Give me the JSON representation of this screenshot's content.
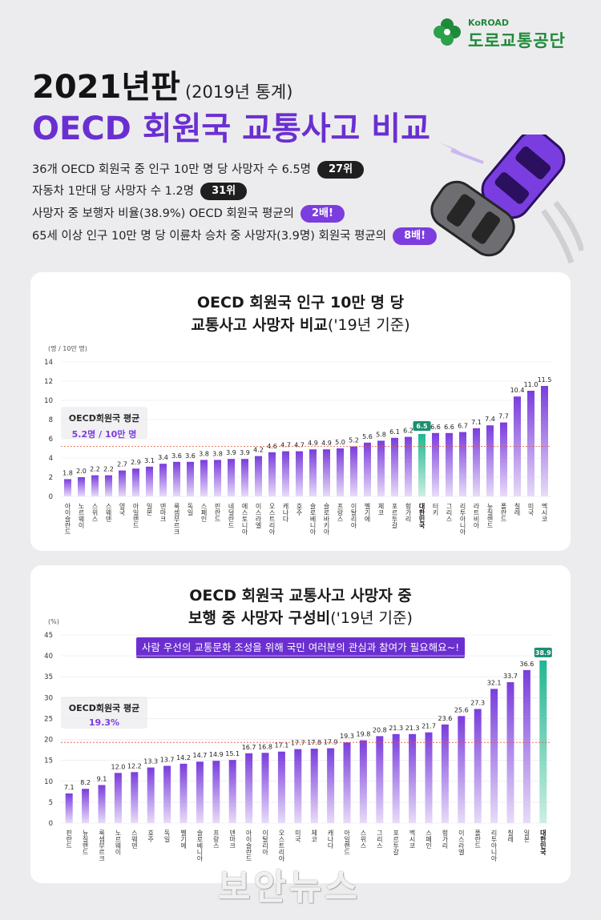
{
  "logo": {
    "sub": "KoROAD",
    "main": "도로교통공단"
  },
  "header": {
    "title_year": "2021년판",
    "title_year_sub": "(2019년 통계)",
    "title_main": "OECD 회원국 교통사고 비교"
  },
  "facts": [
    {
      "text": "36개 OECD 회원국 중 인구 10만 명 당 사망자 수 6.5명",
      "badge": "27위",
      "style": "dark"
    },
    {
      "text": "자동차 1만대 당 사망자 수 1.2명",
      "badge": "31위",
      "style": "dark"
    },
    {
      "text": "사망자 중 보행자 비율(38.9%) OECD 회원국 평균의",
      "badge": "2배!",
      "style": "purple"
    },
    {
      "text": "65세 이상 인구 10만 명 당 이륜차 승차 중 사망자(3.9명) 회원국 평균의",
      "badge": "8배!",
      "style": "purple"
    }
  ],
  "colors": {
    "bar_top": "#7b3ddc",
    "bar_bottom": "#e7dcf8",
    "highlight_top": "#21b691",
    "highlight_bottom": "#cdeee3",
    "average_line": "#e2553f",
    "accent": "#6a2fd2"
  },
  "chart_data": [
    {
      "type": "bar",
      "title_bold": "OECD 회원국 인구 10만 명 당",
      "title_bold2": "교통사고 사망자 비교",
      "title_suffix": "('19년 기준)",
      "ylabel": "(명 / 10만 명)",
      "ylim": [
        0,
        14
      ],
      "yticks": [
        0,
        2,
        4,
        6,
        8,
        10,
        12,
        14
      ],
      "average": {
        "label": "OECD회원국 평균",
        "value_text": "5.2명 / 10만 명",
        "value": 5.2
      },
      "highlight": "대한민국",
      "categories": [
        "아이슬란드",
        "노르웨이",
        "스위스",
        "스웨덴",
        "영국",
        "아일랜드",
        "일본",
        "덴마크",
        "룩셈부르크",
        "독일",
        "스페인",
        "핀란드",
        "네덜란드",
        "에스토니아",
        "이스라엘",
        "오스트리아",
        "캐나다",
        "호주",
        "슬로베니아",
        "슬로바키아",
        "프랑스",
        "이탈리아",
        "벨기에",
        "체코",
        "포르투갈",
        "헝가리",
        "대한민국",
        "터키",
        "그리스",
        "리투아니아",
        "라트비아",
        "뉴질랜드",
        "폴란드",
        "칠레",
        "미국",
        "멕시코"
      ],
      "values": [
        1.8,
        2.0,
        2.2,
        2.2,
        2.7,
        2.9,
        3.1,
        3.4,
        3.6,
        3.6,
        3.8,
        3.8,
        3.9,
        3.9,
        4.2,
        4.6,
        4.7,
        4.7,
        4.9,
        4.9,
        5.0,
        5.2,
        5.6,
        5.8,
        6.1,
        6.2,
        6.5,
        6.6,
        6.6,
        6.7,
        7.1,
        7.4,
        7.7,
        10.4,
        11.0,
        11.5
      ]
    },
    {
      "type": "bar",
      "title_bold": "OECD 회원국 교통사고 사망자 중",
      "title_bold2": "보행 중 사망자 구성비",
      "title_suffix": "('19년 기준)",
      "banner": "사람 우선의 교통문화 조성을 위해 국민 여러분의 관심과 참여가 필요해요~!",
      "ylabel": "(%)",
      "ylim": [
        0,
        45
      ],
      "yticks": [
        0,
        5,
        10,
        15,
        20,
        25,
        30,
        35,
        40,
        45
      ],
      "average": {
        "label": "OECD회원국 평균",
        "value_text": "19.3%",
        "value": 19.3
      },
      "highlight": "대한민국",
      "categories": [
        "핀란드",
        "뉴질랜드",
        "룩셈부르크",
        "노르웨이",
        "스웨덴",
        "호주",
        "독일",
        "벨기에",
        "슬로베니아",
        "프랑스",
        "덴마크",
        "아이슬란드",
        "이탈리아",
        "오스트리아",
        "미국",
        "체코",
        "캐나다",
        "아일랜드",
        "스위스",
        "그리스",
        "포르투갈",
        "멕시코",
        "스페인",
        "헝가리",
        "이스라엘",
        "폴란드",
        "리투아니아",
        "칠레",
        "일본",
        "대한민국"
      ],
      "values": [
        7.1,
        8.2,
        9.1,
        12.0,
        12.2,
        13.3,
        13.7,
        14.2,
        14.7,
        14.9,
        15.1,
        16.7,
        16.8,
        17.1,
        17.7,
        17.8,
        17.9,
        19.3,
        19.8,
        20.8,
        21.3,
        21.3,
        21.7,
        23.6,
        25.6,
        27.3,
        32.1,
        33.7,
        36.6,
        38.9
      ]
    }
  ],
  "watermark": "보안뉴스"
}
